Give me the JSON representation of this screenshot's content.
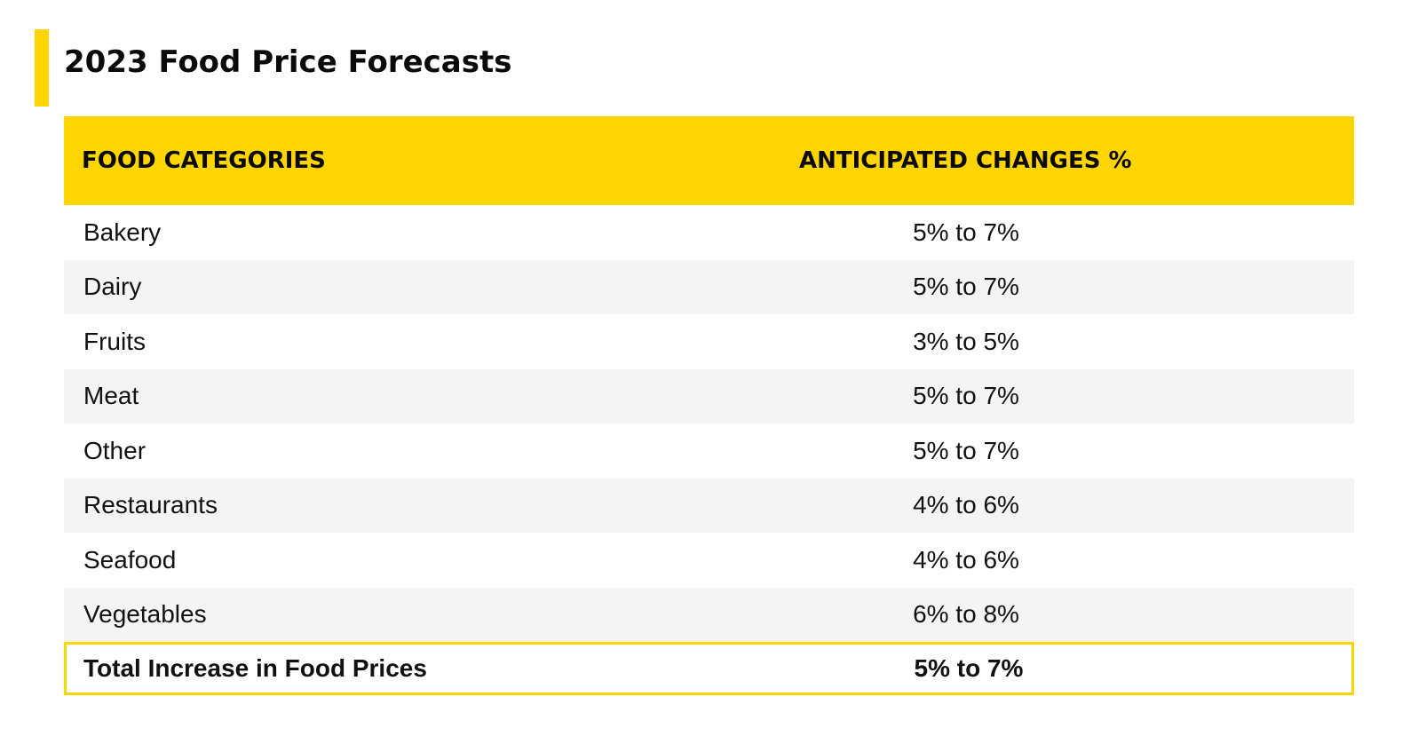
{
  "title": "2023 Food Price Forecasts",
  "accent_color": "#FFD500",
  "chart_data": {
    "type": "table",
    "title": "2023 Food Price Forecasts",
    "columns": [
      "FOOD CATEGORIES",
      "ANTICIPATED CHANGES %"
    ],
    "rows": [
      {
        "category": "Bakery",
        "change": "5% to 7%"
      },
      {
        "category": "Dairy",
        "change": "5% to 7%"
      },
      {
        "category": "Fruits",
        "change": "3% to 5%"
      },
      {
        "category": "Meat",
        "change": "5% to 7%"
      },
      {
        "category": "Other",
        "change": "5% to 7%"
      },
      {
        "category": "Restaurants",
        "change": "4% to 6%"
      },
      {
        "category": "Seafood",
        "change": "4% to 6%"
      },
      {
        "category": "Vegetables",
        "change": "6% to 8%"
      }
    ],
    "total": {
      "category": "Total Increase in Food Prices",
      "change": "5% to 7%"
    }
  }
}
